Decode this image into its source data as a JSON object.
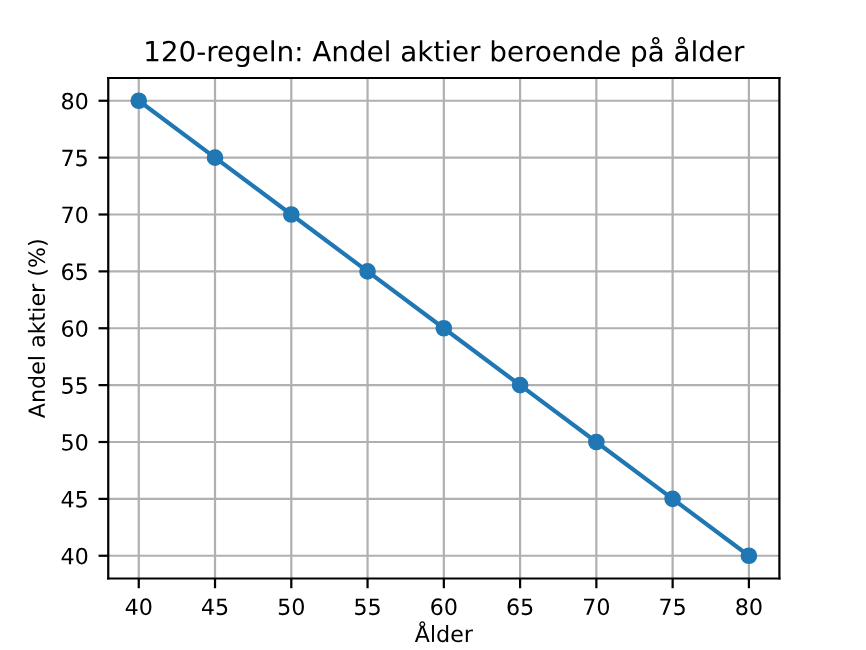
{
  "chart_data": {
    "type": "line",
    "title": "120-regeln: Andel aktier beroende på ålder",
    "xlabel": "Ålder",
    "ylabel": "Andel aktier (%)",
    "x": [
      40,
      45,
      50,
      55,
      60,
      65,
      70,
      75,
      80
    ],
    "series": [
      {
        "color": "#1f77b4",
        "values": [
          80,
          75,
          70,
          65,
          60,
          55,
          50,
          45,
          40
        ]
      }
    ],
    "xlim": [
      38,
      82
    ],
    "ylim": [
      38,
      82
    ],
    "xticks": [
      40,
      45,
      50,
      55,
      60,
      65,
      70,
      75,
      80
    ],
    "yticks": [
      40,
      45,
      50,
      55,
      60,
      65,
      70,
      75,
      80
    ],
    "grid": true,
    "marker": "circle",
    "line_style": "solid"
  }
}
